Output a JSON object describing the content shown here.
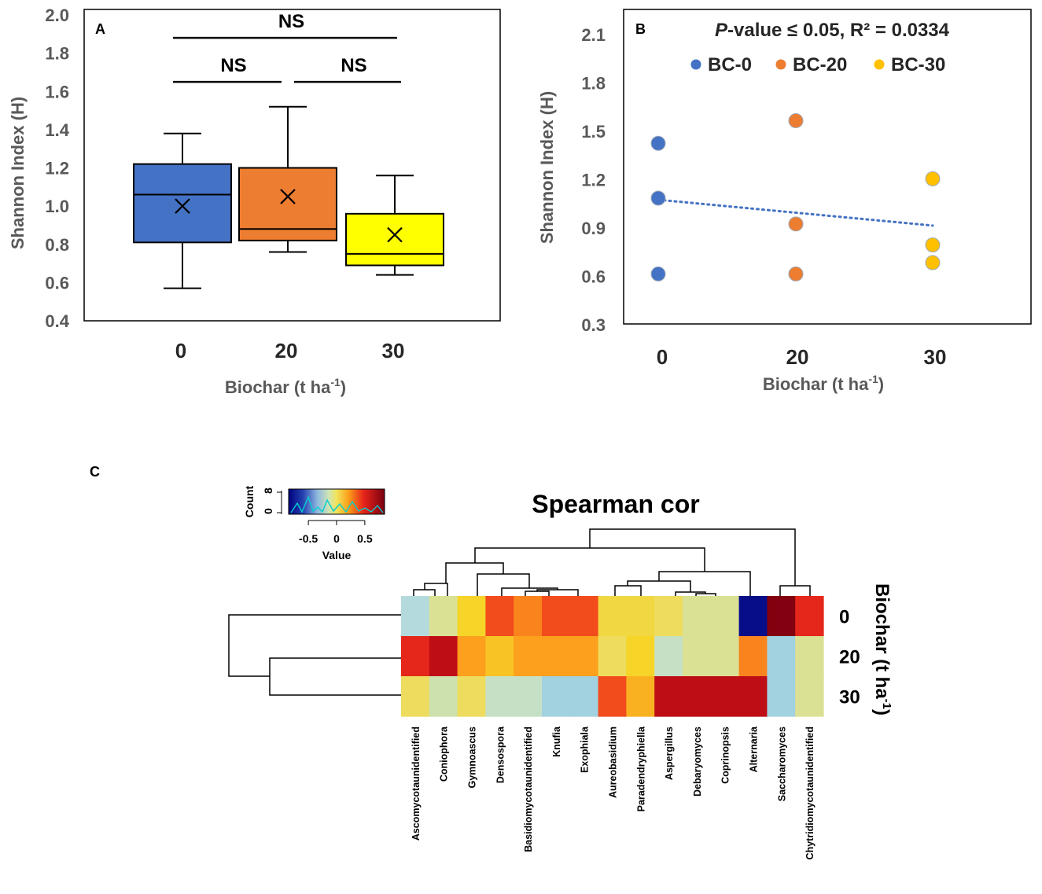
{
  "figure": {
    "panel_labels": {
      "a": "A",
      "b": "B",
      "c": "C"
    }
  },
  "chart_data": [
    {
      "id": "A",
      "type": "box",
      "title": "",
      "xlabel_main": "Biochar (t ha",
      "xlabel_sup": "-1",
      "xlabel_end": ")",
      "ylabel": "Shannon Index (H)",
      "ylim": [
        0.4,
        2.0
      ],
      "yticks": [
        "0.4",
        "0.6",
        "0.8",
        "1.0",
        "1.2",
        "1.4",
        "1.6",
        "1.8",
        "2.0"
      ],
      "categories": [
        "0",
        "20",
        "30"
      ],
      "boxes": [
        {
          "name": "0",
          "whisker_low": 0.57,
          "q1": 0.81,
          "median": 1.06,
          "q3": 1.22,
          "whisker_high": 1.38,
          "mean": 1.0,
          "color": "#4472C4"
        },
        {
          "name": "20",
          "whisker_low": 0.76,
          "q1": 0.82,
          "median": 0.88,
          "q3": 1.2,
          "whisker_high": 1.52,
          "mean": 1.05,
          "color": "#ED7D31"
        },
        {
          "name": "30",
          "whisker_low": 0.64,
          "q1": 0.69,
          "median": 0.75,
          "q3": 0.96,
          "whisker_high": 1.16,
          "mean": 0.85,
          "color": "#FFFF00"
        }
      ],
      "annotations": [
        {
          "text": "NS",
          "from": "0",
          "to": "30",
          "level": 1.88
        },
        {
          "text": "NS",
          "from": "0",
          "to": "20",
          "level": 1.65
        },
        {
          "text": "NS",
          "from": "20",
          "to": "30",
          "level": 1.65
        }
      ]
    },
    {
      "id": "B",
      "type": "scatter",
      "title_italic": "P",
      "title_rest": "-value ≤ 0.05, R² = 0.0334",
      "xlabel_main": "Biochar (t ha",
      "xlabel_sup": "-1",
      "xlabel_end": ")",
      "ylabel": "Shannon Index (H)",
      "ylim": [
        0.3,
        2.25
      ],
      "yticks": [
        "0.3",
        "0.6",
        "0.9",
        "1.2",
        "1.5",
        "1.8",
        "2.1"
      ],
      "categories": [
        "0",
        "20",
        "30"
      ],
      "series": [
        {
          "name": "BC-0",
          "color": "#4472C4",
          "x": "0",
          "values": [
            1.42,
            1.08,
            0.61
          ]
        },
        {
          "name": "BC-20",
          "color": "#ED7D31",
          "x": "20",
          "values": [
            1.56,
            0.92,
            0.61
          ]
        },
        {
          "name": "BC-30",
          "color": "#FFC000",
          "x": "30",
          "values": [
            1.2,
            0.79,
            0.68
          ]
        }
      ],
      "trendline": {
        "from": {
          "x": "0",
          "y": 1.07
        },
        "to": {
          "x": "30",
          "y": 0.91
        },
        "color": "#4472C4",
        "style": "dotted"
      }
    },
    {
      "id": "C",
      "type": "heatmap",
      "title": "Spearman cor",
      "row_title_main": "Biochar (t ha",
      "row_title_sup": "-1",
      "row_title_end": ")",
      "rows": [
        "0",
        "20",
        "30"
      ],
      "columns": [
        "Ascomycotaunidentified",
        "Coniophora",
        "Gymnoascus",
        "Densospora",
        "Basidiomycotaunidentified",
        "Knufia",
        "Exophiala",
        "Aureobasidium",
        "Paradendryphiella",
        "Aspergillus",
        "Debaryomyces",
        "Coprinopsis",
        "Alternaria",
        "Saccharomyces",
        "Chytridiomycotaunidentified"
      ],
      "values": [
        [
          -0.1,
          0.1,
          0.3,
          0.6,
          0.5,
          0.6,
          0.6,
          0.25,
          0.25,
          0.2,
          0.1,
          0.1,
          -0.8,
          0.9,
          0.7
        ],
        [
          0.7,
          0.8,
          0.45,
          0.35,
          0.45,
          0.45,
          0.45,
          0.2,
          0.3,
          0.0,
          0.1,
          0.1,
          0.5,
          -0.2,
          0.1
        ],
        [
          0.2,
          0.05,
          0.2,
          0.0,
          0.0,
          -0.2,
          -0.2,
          0.6,
          0.4,
          0.8,
          0.8,
          0.8,
          0.8,
          -0.2,
          0.1
        ]
      ],
      "color_key": {
        "title": "Count",
        "count_ticks": [
          "0",
          "8"
        ],
        "value_label": "Value",
        "ticks": [
          "-0.5",
          "0",
          "0.5"
        ],
        "range": [
          -0.85,
          0.85
        ]
      }
    }
  ]
}
